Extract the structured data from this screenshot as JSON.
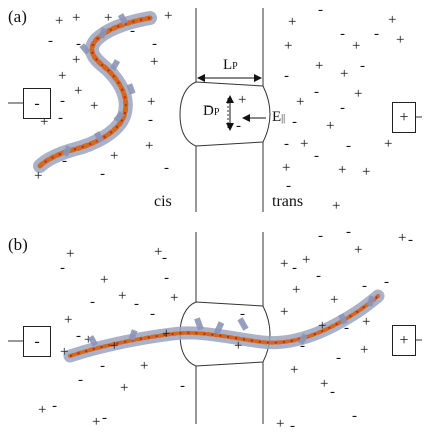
{
  "panel_a": {
    "label": "(a)",
    "left_electrode": "-",
    "right_electrode": "+",
    "length_label": "L",
    "length_sub": "P",
    "diameter_label": "D",
    "diameter_sub": "P",
    "field_label": "E",
    "field_sub": "||",
    "cis_label": "cis",
    "trans_label": "trans"
  },
  "panel_b": {
    "label": "(b)",
    "left_electrode": "-",
    "right_electrode": "+"
  }
}
